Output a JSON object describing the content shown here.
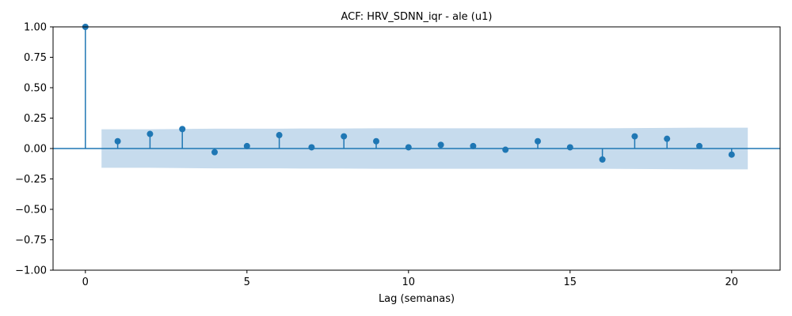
{
  "chart_data": {
    "type": "scatter",
    "subtype": "stem",
    "title": "ACF: HRV_SDNN_iqr - ale (u1)",
    "xlabel": "Lag (semanas)",
    "ylabel": "",
    "xlim": [
      -1,
      21.5
    ],
    "ylim": [
      -1.0,
      1.0
    ],
    "x_ticks": [
      0,
      5,
      10,
      15,
      20
    ],
    "y_ticks": [
      -1.0,
      -0.75,
      -0.5,
      -0.25,
      0.0,
      0.25,
      0.5,
      0.75,
      1.0
    ],
    "x_tick_labels": [
      "0",
      "5",
      "10",
      "15",
      "20"
    ],
    "y_tick_labels": [
      "−1.00",
      "−0.75",
      "−0.50",
      "−0.25",
      "0.00",
      "0.25",
      "0.50",
      "0.75",
      "1.00"
    ],
    "lags": [
      0,
      1,
      2,
      3,
      4,
      5,
      6,
      7,
      8,
      9,
      10,
      11,
      12,
      13,
      14,
      15,
      16,
      17,
      18,
      19,
      20
    ],
    "acf": [
      1.0,
      0.06,
      0.12,
      0.16,
      -0.03,
      0.02,
      0.11,
      0.01,
      0.1,
      0.06,
      0.01,
      0.03,
      0.02,
      -0.01,
      0.06,
      0.01,
      -0.09,
      0.1,
      0.08,
      0.02,
      -0.05
    ],
    "confidence_band": {
      "x": [
        0.5,
        1,
        2,
        3,
        4,
        5,
        6,
        7,
        8,
        9,
        10,
        11,
        12,
        13,
        14,
        15,
        16,
        17,
        18,
        19,
        20,
        20.5
      ],
      "upper": [
        0.158,
        0.158,
        0.158,
        0.161,
        0.163,
        0.163,
        0.163,
        0.165,
        0.165,
        0.166,
        0.166,
        0.166,
        0.166,
        0.166,
        0.166,
        0.166,
        0.166,
        0.168,
        0.17,
        0.171,
        0.171,
        0.171
      ]
    },
    "colors": {
      "stem": "#1f77b4",
      "marker": "#1f77b4",
      "band": "#c6dbed",
      "zero_line": "#1f77b4"
    },
    "grid": false,
    "legend": "none"
  }
}
